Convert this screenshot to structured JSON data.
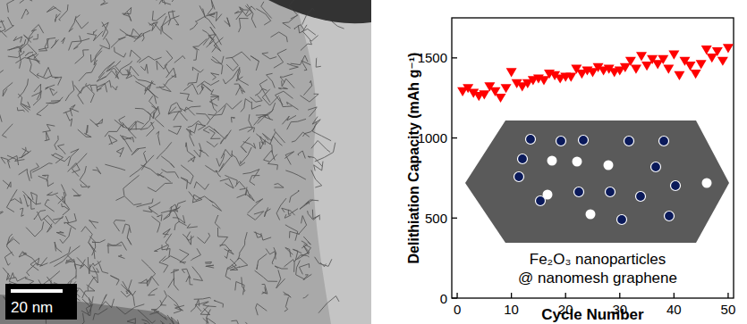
{
  "image": {
    "scale_bar": "20 nm"
  },
  "chart_data": {
    "type": "scatter",
    "xlabel": "Cycle Number",
    "ylabel": "Delithiation Capacity (mAh g⁻¹)",
    "annotations": [
      "Fe₂O₃ nanoparticles",
      "@ nanomesh graphene"
    ],
    "x": [
      1,
      2,
      3,
      4,
      5,
      6,
      7,
      8,
      9,
      10,
      11,
      12,
      13,
      14,
      15,
      16,
      17,
      18,
      19,
      20,
      21,
      22,
      23,
      24,
      25,
      26,
      27,
      28,
      29,
      30,
      31,
      32,
      33,
      34,
      35,
      36,
      37,
      38,
      39,
      40,
      41,
      42,
      43,
      44,
      45,
      46,
      47,
      48,
      49,
      50
    ],
    "series": [
      {
        "name": "Fe₂O₃ nanoparticles @ nanomesh graphene",
        "color": "#ff0000",
        "marker": "triangle-down",
        "values": [
          1290,
          1310,
          1280,
          1260,
          1270,
          1320,
          1290,
          1250,
          1310,
          1410,
          1340,
          1320,
          1340,
          1360,
          1370,
          1360,
          1400,
          1390,
          1370,
          1380,
          1380,
          1430,
          1400,
          1420,
          1410,
          1440,
          1420,
          1430,
          1410,
          1420,
          1440,
          1480,
          1430,
          1510,
          1450,
          1490,
          1460,
          1490,
          1430,
          1520,
          1390,
          1480,
          1450,
          1400,
          1460,
          1550,
          1500,
          1540,
          1480,
          1560
        ]
      }
    ],
    "xlim": [
      -1,
      51
    ],
    "xticks": [
      0,
      10,
      20,
      30,
      40,
      50
    ],
    "ylim": [
      0,
      1750
    ],
    "yticks": [
      0,
      500,
      1000,
      1500
    ],
    "grid": false
  }
}
